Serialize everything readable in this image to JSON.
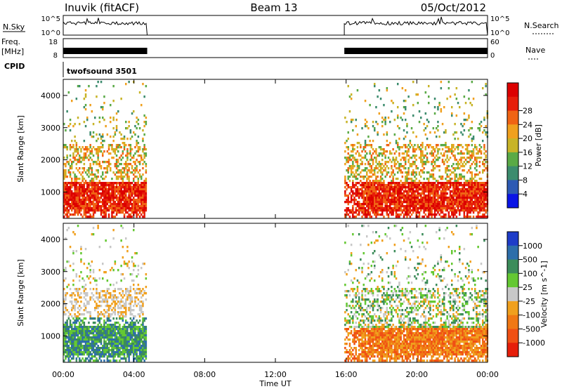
{
  "header": {
    "station": "Inuvik (fitACF)",
    "beam": "Beam 13",
    "date": "05/Oct/2012"
  },
  "strip_panels": {
    "nsky_label": "N.Sky",
    "nsky_ticks": [
      "10^5",
      "10^0"
    ],
    "nsearch_label": "N.Search",
    "nsearch_ticks": [
      "10^5",
      "10^0"
    ],
    "freq_label": "Freq.",
    "freq_unit": "[MHz]",
    "freq_ticks": [
      "18",
      "8"
    ],
    "nave_label": "Nave",
    "nave_ticks": [
      "60",
      "0"
    ],
    "cpid_label": "CPID",
    "cpid_value": "twofsound 3501"
  },
  "chart_data": [
    {
      "type": "heatmap",
      "title": "",
      "xlabel": "",
      "ylabel": "Slant Range [km]",
      "x_range_hours": [
        0,
        24
      ],
      "x_ticks": [
        "00:00",
        "04:00",
        "08:00",
        "12:00",
        "16:00",
        "20:00",
        "00:00"
      ],
      "ylim": [
        180,
        4500
      ],
      "y_ticks": [
        1000,
        2000,
        3000,
        4000
      ],
      "data_intervals_hours": [
        [
          0.0,
          4.75
        ],
        [
          15.9,
          24.0
        ]
      ],
      "colorbar": {
        "label": "Power [dB]",
        "ticks": [
          "4",
          "8",
          "12",
          "16",
          "20",
          "24",
          "28"
        ],
        "colors": [
          "#0a14e6",
          "#2d5ab4",
          "#3c8c6e",
          "#5aaa46",
          "#c8b428",
          "#f0a01e",
          "#f06414",
          "#e61e0a",
          "#dc0000"
        ]
      },
      "dominant_echo_band_km": [
        500,
        1300
      ]
    },
    {
      "type": "heatmap",
      "title": "",
      "xlabel": "Time UT",
      "ylabel": "Slant Range [km]",
      "x_range_hours": [
        0,
        24
      ],
      "x_ticks": [
        "00:00",
        "04:00",
        "08:00",
        "12:00",
        "16:00",
        "20:00",
        "00:00"
      ],
      "ylim": [
        180,
        4500
      ],
      "y_ticks": [
        1000,
        2000,
        3000,
        4000
      ],
      "data_intervals_hours": [
        [
          0.0,
          4.75
        ],
        [
          15.9,
          24.0
        ]
      ],
      "colorbar": {
        "label": "Velocity [m s^-1]",
        "ticks": [
          "1000",
          "500",
          "100",
          "25",
          "-25",
          "-100",
          "-500",
          "-1000"
        ],
        "colors": [
          "#1e3cc8",
          "#2d6eaa",
          "#3c8c5a",
          "#64c832",
          "#c8c8c8",
          "#f0a01e",
          "#f07814",
          "#f05014",
          "#e61e0a"
        ]
      }
    }
  ]
}
